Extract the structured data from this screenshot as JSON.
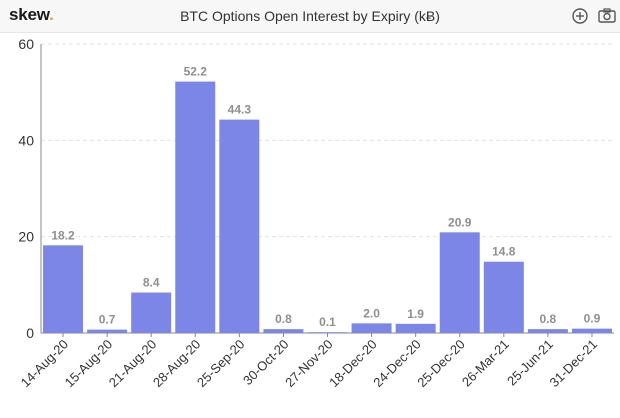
{
  "header": {
    "brand_text": "skew",
    "brand_dot": ".",
    "title": "BTC Options Open Interest by Expiry (kɃ)",
    "icons": [
      "zoom-in-icon",
      "camera-icon"
    ]
  },
  "colors": {
    "bar": "#7b86e6",
    "bar_label": "#8f8f8f",
    "axis_text": "#333333",
    "grid": "#e3e3e3",
    "brand_dot": "#f2a900"
  },
  "chart_data": {
    "type": "bar",
    "title": "BTC Options Open Interest by Expiry (kɃ)",
    "categories": [
      "14-Aug-20",
      "15-Aug-20",
      "21-Aug-20",
      "28-Aug-20",
      "25-Sep-20",
      "30-Oct-20",
      "27-Nov-20",
      "18-Dec-20",
      "24-Dec-20",
      "25-Dec-20",
      "26-Mar-21",
      "25-Jun-21",
      "31-Dec-21"
    ],
    "values": [
      18.2,
      0.7,
      8.4,
      52.2,
      44.3,
      0.8,
      0.1,
      2.0,
      1.9,
      20.9,
      14.8,
      0.8,
      0.9
    ],
    "value_labels": [
      "18.2",
      "0.7",
      "8.4",
      "52.2",
      "44.3",
      "0.8",
      "0.1",
      "2.0",
      "1.9",
      "20.9",
      "14.8",
      "0.8",
      "0.9"
    ],
    "ylim": [
      0,
      60
    ],
    "yticks": [
      0,
      20,
      40,
      60
    ],
    "grid": true,
    "legend": "none"
  }
}
